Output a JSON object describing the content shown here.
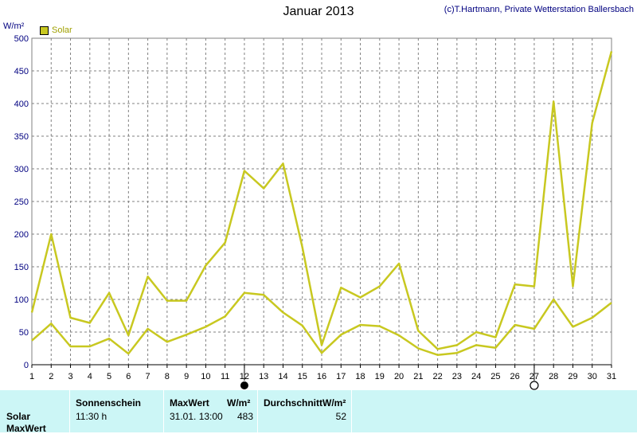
{
  "header": {
    "title": "Januar 2013",
    "credit": "(c)T.Hartmann, Private Wetterstation Ballersbach",
    "unit": "W/m²"
  },
  "legend": {
    "label": "Solar",
    "color": "#c8c820"
  },
  "chart_data": {
    "type": "line",
    "title": "Januar 2013",
    "ylabel": "W/m²",
    "x": [
      1,
      2,
      3,
      4,
      5,
      6,
      7,
      8,
      9,
      10,
      11,
      12,
      13,
      14,
      15,
      16,
      17,
      18,
      19,
      20,
      21,
      22,
      23,
      24,
      25,
      26,
      27,
      28,
      29,
      30,
      31
    ],
    "ylim": [
      0,
      500
    ],
    "yticks": [
      0,
      50,
      100,
      150,
      200,
      250,
      300,
      350,
      400,
      450,
      500
    ],
    "grid": true,
    "legend_position": "top-left",
    "series": [
      {
        "name": "Solar",
        "color": "#c8c820",
        "values": [
          80,
          200,
          72,
          64,
          110,
          45,
          135,
          98,
          98,
          152,
          187,
          297,
          270,
          308,
          180,
          30,
          118,
          103,
          120,
          155,
          52,
          24,
          30,
          50,
          42,
          123,
          120,
          403,
          120,
          370,
          480
        ]
      },
      {
        "name": "",
        "color": "#c8c820",
        "values": [
          37,
          63,
          28,
          28,
          40,
          17,
          55,
          35,
          46,
          58,
          74,
          110,
          107,
          80,
          60,
          18,
          46,
          61,
          59,
          45,
          25,
          15,
          18,
          30,
          26,
          61,
          55,
          100,
          58,
          72,
          95
        ]
      }
    ],
    "markers": [
      {
        "day": 12,
        "type": "new-moon"
      },
      {
        "day": 27,
        "type": "full-moon"
      }
    ]
  },
  "panel": {
    "row_labels": [
      "Solar",
      "MaxWert"
    ],
    "headers": {
      "sunshine": "Sonnenschein",
      "maxwert": "MaxWert",
      "maxunit": "W/m²",
      "average": "DurchschnittW/m²"
    },
    "values": {
      "sunshine": "11:30 h",
      "maxdate": "31.01.  13:00",
      "maxvalue": "483",
      "average": "52"
    }
  }
}
